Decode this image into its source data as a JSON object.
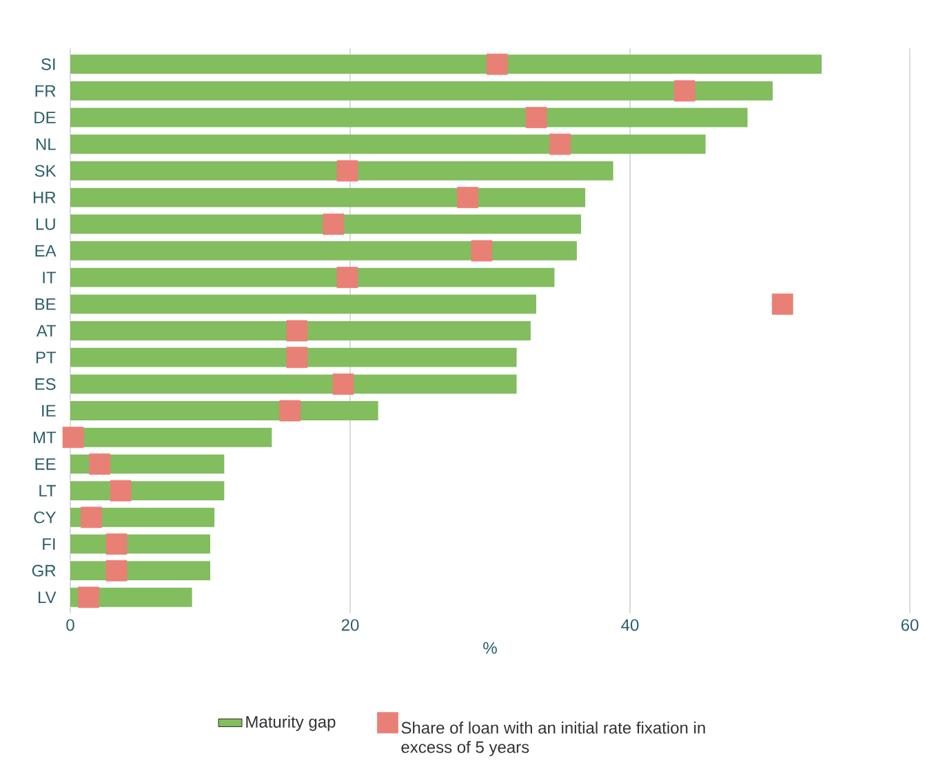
{
  "chart_data": {
    "type": "bar",
    "orientation": "horizontal",
    "categories": [
      "SI",
      "FR",
      "DE",
      "NL",
      "SK",
      "HR",
      "LU",
      "EA",
      "IT",
      "BE",
      "AT",
      "PT",
      "ES",
      "IE",
      "MT",
      "EE",
      "LT",
      "CY",
      "FI",
      "GR",
      "LV"
    ],
    "series": [
      {
        "name": "Maturity gap",
        "color": "#82bd5e",
        "values": [
          53.7,
          50.2,
          48.4,
          45.4,
          38.8,
          36.8,
          36.5,
          36.2,
          34.6,
          33.3,
          32.9,
          31.9,
          31.9,
          22.0,
          14.4,
          11.0,
          11.0,
          10.3,
          10.0,
          10.0,
          8.7
        ]
      },
      {
        "name": "Share of loan with an initial rate fixation in excess of 5 years",
        "type": "scatter",
        "marker": "square",
        "color": "#e88076",
        "values": [
          30.5,
          43.9,
          33.3,
          35.0,
          19.8,
          28.4,
          18.8,
          29.4,
          19.8,
          50.9,
          16.2,
          16.2,
          19.5,
          15.7,
          0.2,
          2.1,
          3.6,
          1.5,
          3.3,
          3.3,
          1.3
        ]
      }
    ],
    "xlabel": "%",
    "xlim": [
      0,
      60
    ],
    "xticks": [
      0,
      20,
      40,
      60
    ],
    "grid": "x",
    "legend": "bottom"
  }
}
